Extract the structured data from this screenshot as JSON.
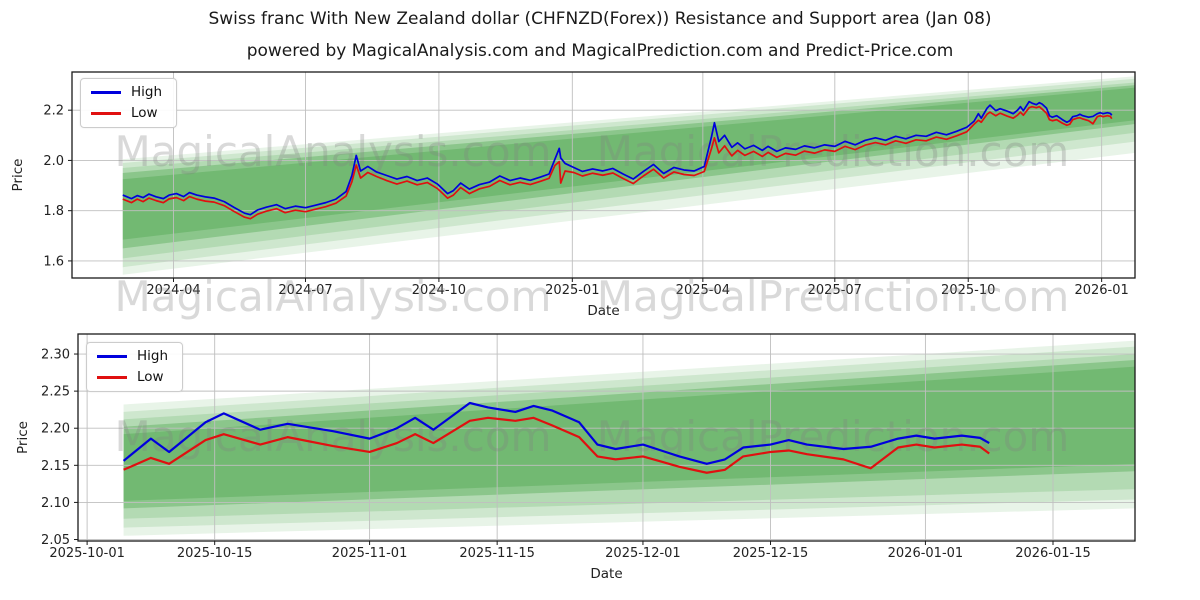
{
  "page": {
    "title": "Swiss franc With New Zealand dollar (CHFNZD(Forex)) Resistance and Support area (Jan 08)",
    "subtitle": "powered by MagicalAnalysis.com and MagicalPrediction.com and Predict-Price.com"
  },
  "colors": {
    "high": "#0000dd",
    "low": "#e01010",
    "band_base": "#008000",
    "grid": "#bfbfbf",
    "spine": "#1a1a1a",
    "tick_text": "#222222",
    "watermark": "#808080"
  },
  "legend": {
    "items": [
      {
        "label": "High",
        "color_key": "high"
      },
      {
        "label": "Low",
        "color_key": "low"
      }
    ]
  },
  "watermarks": {
    "texts": [
      "MagicalAnalysis.com",
      "MagicalPrediction.com"
    ],
    "opacity": 0.3
  },
  "chart_data": [
    {
      "type": "line",
      "title": "",
      "xlabel": "Date",
      "ylabel": "Price",
      "legend_position": "upper left",
      "grid": true,
      "x_domain": [
        "2024-01-22",
        "2026-01-24"
      ],
      "y_domain": [
        1.532,
        2.352
      ],
      "x_ticks": [
        {
          "date": "2024-04-01",
          "label": "2024-04"
        },
        {
          "date": "2024-07-01",
          "label": "2024-07"
        },
        {
          "date": "2024-10-01",
          "label": "2024-10"
        },
        {
          "date": "2025-01-01",
          "label": "2025-01"
        },
        {
          "date": "2025-04-01",
          "label": "2025-04"
        },
        {
          "date": "2025-07-01",
          "label": "2025-07"
        },
        {
          "date": "2025-10-01",
          "label": "2025-10"
        },
        {
          "date": "2026-01-01",
          "label": "2026-01"
        }
      ],
      "y_ticks": [
        {
          "value": 2.2,
          "label": "2.2"
        },
        {
          "value": 2.0,
          "label": "2.0"
        },
        {
          "value": 1.8,
          "label": "1.8"
        },
        {
          "value": 1.6,
          "label": "1.6"
        }
      ],
      "series_names": [
        "High",
        "Low"
      ],
      "rows": [
        [
          "2024-02-26",
          1.862,
          1.846
        ],
        [
          "2024-03-03",
          1.848,
          1.832
        ],
        [
          "2024-03-07",
          1.86,
          1.846
        ],
        [
          "2024-03-11",
          1.852,
          1.836
        ],
        [
          "2024-03-15",
          1.866,
          1.85
        ],
        [
          "2024-03-20",
          1.855,
          1.84
        ],
        [
          "2024-03-25",
          1.848,
          1.832
        ],
        [
          "2024-03-29",
          1.862,
          1.847
        ],
        [
          "2024-04-03",
          1.868,
          1.852
        ],
        [
          "2024-04-08",
          1.856,
          1.84
        ],
        [
          "2024-04-12",
          1.872,
          1.856
        ],
        [
          "2024-04-17",
          1.862,
          1.846
        ],
        [
          "2024-04-23",
          1.855,
          1.838
        ],
        [
          "2024-04-29",
          1.85,
          1.834
        ],
        [
          "2024-05-06",
          1.836,
          1.82
        ],
        [
          "2024-05-13",
          1.812,
          1.796
        ],
        [
          "2024-05-20",
          1.79,
          1.774
        ],
        [
          "2024-05-24",
          1.784,
          1.768
        ],
        [
          "2024-05-29",
          1.803,
          1.786
        ],
        [
          "2024-06-04",
          1.814,
          1.798
        ],
        [
          "2024-06-11",
          1.824,
          1.808
        ],
        [
          "2024-06-17",
          1.808,
          1.792
        ],
        [
          "2024-06-24",
          1.818,
          1.802
        ],
        [
          "2024-07-01",
          1.812,
          1.796
        ],
        [
          "2024-07-08",
          1.822,
          1.806
        ],
        [
          "2024-07-15",
          1.832,
          1.816
        ],
        [
          "2024-07-22",
          1.846,
          1.83
        ],
        [
          "2024-07-29",
          1.876,
          1.858
        ],
        [
          "2024-08-02",
          1.94,
          1.915
        ],
        [
          "2024-08-05",
          2.02,
          1.982
        ],
        [
          "2024-08-08",
          1.958,
          1.93
        ],
        [
          "2024-08-13",
          1.976,
          1.952
        ],
        [
          "2024-08-19",
          1.954,
          1.936
        ],
        [
          "2024-08-26",
          1.94,
          1.92
        ],
        [
          "2024-09-02",
          1.926,
          1.906
        ],
        [
          "2024-09-09",
          1.936,
          1.918
        ],
        [
          "2024-09-16",
          1.92,
          1.903
        ],
        [
          "2024-09-23",
          1.93,
          1.912
        ],
        [
          "2024-09-30",
          1.906,
          1.888
        ],
        [
          "2024-10-07",
          1.868,
          1.85
        ],
        [
          "2024-10-11",
          1.88,
          1.862
        ],
        [
          "2024-10-16",
          1.91,
          1.892
        ],
        [
          "2024-10-22",
          1.886,
          1.868
        ],
        [
          "2024-10-29",
          1.904,
          1.887
        ],
        [
          "2024-11-05",
          1.914,
          1.897
        ],
        [
          "2024-11-12",
          1.938,
          1.92
        ],
        [
          "2024-11-19",
          1.92,
          1.903
        ],
        [
          "2024-11-26",
          1.93,
          1.913
        ],
        [
          "2024-12-03",
          1.921,
          1.904
        ],
        [
          "2024-12-10",
          1.934,
          1.917
        ],
        [
          "2024-12-16",
          1.946,
          1.929
        ],
        [
          "2024-12-20",
          2.005,
          1.98
        ],
        [
          "2024-12-23",
          2.048,
          1.995
        ],
        [
          "2024-12-24",
          2.01,
          1.91
        ],
        [
          "2024-12-27",
          1.988,
          1.958
        ],
        [
          "2025-01-02",
          1.972,
          1.952
        ],
        [
          "2025-01-08",
          1.956,
          1.938
        ],
        [
          "2025-01-15",
          1.966,
          1.949
        ],
        [
          "2025-01-22",
          1.958,
          1.941
        ],
        [
          "2025-01-29",
          1.968,
          1.95
        ],
        [
          "2025-02-05",
          1.946,
          1.928
        ],
        [
          "2025-02-12",
          1.926,
          1.908
        ],
        [
          "2025-02-19",
          1.956,
          1.938
        ],
        [
          "2025-02-26",
          1.984,
          1.965
        ],
        [
          "2025-03-05",
          1.948,
          1.93
        ],
        [
          "2025-03-12",
          1.972,
          1.954
        ],
        [
          "2025-03-19",
          1.962,
          1.944
        ],
        [
          "2025-03-26",
          1.958,
          1.94
        ],
        [
          "2025-04-02",
          1.976,
          1.956
        ],
        [
          "2025-04-07",
          2.095,
          2.048
        ],
        [
          "2025-04-09",
          2.15,
          2.09
        ],
        [
          "2025-04-12",
          2.075,
          2.03
        ],
        [
          "2025-04-16",
          2.1,
          2.058
        ],
        [
          "2025-04-21",
          2.052,
          2.018
        ],
        [
          "2025-04-25",
          2.07,
          2.04
        ],
        [
          "2025-04-30",
          2.046,
          2.02
        ],
        [
          "2025-05-06",
          2.06,
          2.036
        ],
        [
          "2025-05-12",
          2.04,
          2.016
        ],
        [
          "2025-05-16",
          2.056,
          2.032
        ],
        [
          "2025-05-22",
          2.036,
          2.012
        ],
        [
          "2025-05-28",
          2.05,
          2.028
        ],
        [
          "2025-06-04",
          2.044,
          2.021
        ],
        [
          "2025-06-10",
          2.058,
          2.037
        ],
        [
          "2025-06-17",
          2.05,
          2.029
        ],
        [
          "2025-06-24",
          2.062,
          2.042
        ],
        [
          "2025-07-01",
          2.056,
          2.036
        ],
        [
          "2025-07-08",
          2.076,
          2.056
        ],
        [
          "2025-07-15",
          2.062,
          2.043
        ],
        [
          "2025-07-22",
          2.08,
          2.061
        ],
        [
          "2025-07-29",
          2.09,
          2.071
        ],
        [
          "2025-08-05",
          2.08,
          2.062
        ],
        [
          "2025-08-12",
          2.096,
          2.078
        ],
        [
          "2025-08-19",
          2.086,
          2.068
        ],
        [
          "2025-08-26",
          2.1,
          2.082
        ],
        [
          "2025-09-02",
          2.096,
          2.078
        ],
        [
          "2025-09-09",
          2.112,
          2.093
        ],
        [
          "2025-09-16",
          2.102,
          2.084
        ],
        [
          "2025-09-23",
          2.116,
          2.098
        ],
        [
          "2025-09-30",
          2.132,
          2.114
        ],
        [
          "2025-10-05",
          2.156,
          2.144
        ],
        [
          "2025-10-08",
          2.186,
          2.16
        ],
        [
          "2025-10-10",
          2.168,
          2.152
        ],
        [
          "2025-10-14",
          2.208,
          2.184
        ],
        [
          "2025-10-16",
          2.22,
          2.192
        ],
        [
          "2025-10-20",
          2.198,
          2.178
        ],
        [
          "2025-10-23",
          2.206,
          2.188
        ],
        [
          "2025-10-28",
          2.196,
          2.176
        ],
        [
          "2025-11-01",
          2.186,
          2.168
        ],
        [
          "2025-11-04",
          2.2,
          2.18
        ],
        [
          "2025-11-06",
          2.214,
          2.192
        ],
        [
          "2025-11-08",
          2.198,
          2.18
        ],
        [
          "2025-11-12",
          2.234,
          2.21
        ],
        [
          "2025-11-14",
          2.228,
          2.214
        ],
        [
          "2025-11-17",
          2.222,
          2.21
        ],
        [
          "2025-11-19",
          2.23,
          2.214
        ],
        [
          "2025-11-21",
          2.224,
          2.204
        ],
        [
          "2025-11-24",
          2.208,
          2.188
        ],
        [
          "2025-11-26",
          2.178,
          2.162
        ],
        [
          "2025-11-28",
          2.172,
          2.158
        ],
        [
          "2025-12-01",
          2.178,
          2.162
        ],
        [
          "2025-12-03",
          2.17,
          2.155
        ],
        [
          "2025-12-05",
          2.162,
          2.148
        ],
        [
          "2025-12-08",
          2.152,
          2.14
        ],
        [
          "2025-12-10",
          2.158,
          2.144
        ],
        [
          "2025-12-12",
          2.174,
          2.162
        ],
        [
          "2025-12-15",
          2.178,
          2.168
        ],
        [
          "2025-12-17",
          2.184,
          2.17
        ],
        [
          "2025-12-19",
          2.178,
          2.165
        ],
        [
          "2025-12-23",
          2.172,
          2.158
        ],
        [
          "2025-12-26",
          2.175,
          2.146
        ],
        [
          "2025-12-29",
          2.186,
          2.174
        ],
        [
          "2025-12-31",
          2.19,
          2.178
        ],
        [
          "2026-01-02",
          2.186,
          2.174
        ],
        [
          "2026-01-05",
          2.19,
          2.178
        ],
        [
          "2026-01-07",
          2.187,
          2.175
        ],
        [
          "2026-01-08",
          2.18,
          2.166
        ]
      ],
      "bands": [
        {
          "x0": "2024-02-26",
          "x1": "2026-01-24",
          "y0": [
            1.545,
            2.005
          ],
          "y1": [
            2.03,
            2.335
          ],
          "alpha": 0.09
        },
        {
          "x0": "2024-02-26",
          "x1": "2026-01-24",
          "y0": [
            1.575,
            1.99
          ],
          "y1": [
            2.075,
            2.325
          ],
          "alpha": 0.11
        },
        {
          "x0": "2024-02-26",
          "x1": "2026-01-24",
          "y0": [
            1.61,
            1.97
          ],
          "y1": [
            2.11,
            2.31
          ],
          "alpha": 0.13
        },
        {
          "x0": "2024-02-26",
          "x1": "2026-01-24",
          "y0": [
            1.65,
            1.95
          ],
          "y1": [
            2.145,
            2.3
          ],
          "alpha": 0.22
        },
        {
          "x0": "2024-02-26",
          "x1": "2026-01-24",
          "y0": [
            1.685,
            1.925
          ],
          "y1": [
            2.16,
            2.29
          ],
          "alpha": 0.18
        }
      ]
    },
    {
      "type": "line",
      "title": "",
      "xlabel": "Date",
      "ylabel": "Price",
      "legend_position": "upper left",
      "grid": true,
      "x_domain": [
        "2025-09-30",
        "2026-01-24"
      ],
      "y_domain": [
        2.048,
        2.327
      ],
      "x_ticks": [
        {
          "date": "2025-10-01",
          "label": "2025-10-01"
        },
        {
          "date": "2025-10-15",
          "label": "2025-10-15"
        },
        {
          "date": "2025-11-01",
          "label": "2025-11-01"
        },
        {
          "date": "2025-11-15",
          "label": "2025-11-15"
        },
        {
          "date": "2025-12-01",
          "label": "2025-12-01"
        },
        {
          "date": "2025-12-15",
          "label": "2025-12-15"
        },
        {
          "date": "2026-01-01",
          "label": "2026-01-01"
        },
        {
          "date": "2026-01-15",
          "label": "2026-01-15"
        }
      ],
      "y_ticks": [
        {
          "value": 2.3,
          "label": "2.30"
        },
        {
          "value": 2.25,
          "label": "2.25"
        },
        {
          "value": 2.2,
          "label": "2.20"
        },
        {
          "value": 2.15,
          "label": "2.15"
        },
        {
          "value": 2.1,
          "label": "2.10"
        },
        {
          "value": 2.05,
          "label": "2.05"
        }
      ],
      "series_names": [
        "High",
        "Low"
      ],
      "rows": [
        [
          "2025-10-05",
          2.156,
          2.144
        ],
        [
          "2025-10-08",
          2.186,
          2.16
        ],
        [
          "2025-10-10",
          2.168,
          2.152
        ],
        [
          "2025-10-14",
          2.208,
          2.184
        ],
        [
          "2025-10-16",
          2.22,
          2.192
        ],
        [
          "2025-10-20",
          2.198,
          2.178
        ],
        [
          "2025-10-23",
          2.206,
          2.188
        ],
        [
          "2025-10-28",
          2.196,
          2.176
        ],
        [
          "2025-11-01",
          2.186,
          2.168
        ],
        [
          "2025-11-04",
          2.2,
          2.18
        ],
        [
          "2025-11-06",
          2.214,
          2.192
        ],
        [
          "2025-11-08",
          2.198,
          2.18
        ],
        [
          "2025-11-12",
          2.234,
          2.21
        ],
        [
          "2025-11-14",
          2.228,
          2.214
        ],
        [
          "2025-11-17",
          2.222,
          2.21
        ],
        [
          "2025-11-19",
          2.23,
          2.214
        ],
        [
          "2025-11-21",
          2.224,
          2.204
        ],
        [
          "2025-11-24",
          2.208,
          2.188
        ],
        [
          "2025-11-26",
          2.178,
          2.162
        ],
        [
          "2025-11-28",
          2.172,
          2.158
        ],
        [
          "2025-12-01",
          2.178,
          2.162
        ],
        [
          "2025-12-03",
          2.17,
          2.155
        ],
        [
          "2025-12-05",
          2.162,
          2.148
        ],
        [
          "2025-12-08",
          2.152,
          2.14
        ],
        [
          "2025-12-10",
          2.158,
          2.144
        ],
        [
          "2025-12-12",
          2.174,
          2.162
        ],
        [
          "2025-12-15",
          2.178,
          2.168
        ],
        [
          "2025-12-17",
          2.184,
          2.17
        ],
        [
          "2025-12-19",
          2.178,
          2.165
        ],
        [
          "2025-12-23",
          2.172,
          2.158
        ],
        [
          "2025-12-26",
          2.175,
          2.146
        ],
        [
          "2025-12-29",
          2.186,
          2.174
        ],
        [
          "2025-12-31",
          2.19,
          2.178
        ],
        [
          "2026-01-02",
          2.186,
          2.174
        ],
        [
          "2026-01-05",
          2.19,
          2.178
        ],
        [
          "2026-01-07",
          2.187,
          2.175
        ],
        [
          "2026-01-08",
          2.18,
          2.166
        ]
      ],
      "bands": [
        {
          "x0": "2025-10-05",
          "x1": "2026-01-24",
          "y0": [
            2.055,
            2.232
          ],
          "y1": [
            2.092,
            2.318
          ],
          "alpha": 0.09
        },
        {
          "x0": "2025-10-05",
          "x1": "2026-01-24",
          "y0": [
            2.066,
            2.222
          ],
          "y1": [
            2.104,
            2.31
          ],
          "alpha": 0.11
        },
        {
          "x0": "2025-10-05",
          "x1": "2026-01-24",
          "y0": [
            2.078,
            2.212
          ],
          "y1": [
            2.118,
            2.3
          ],
          "alpha": 0.13
        },
        {
          "x0": "2025-10-05",
          "x1": "2026-01-24",
          "y0": [
            2.092,
            2.202
          ],
          "y1": [
            2.142,
            2.292
          ],
          "alpha": 0.22
        },
        {
          "x0": "2025-10-05",
          "x1": "2026-01-24",
          "y0": [
            2.102,
            2.192
          ],
          "y1": [
            2.152,
            2.283
          ],
          "alpha": 0.18
        }
      ]
    }
  ]
}
